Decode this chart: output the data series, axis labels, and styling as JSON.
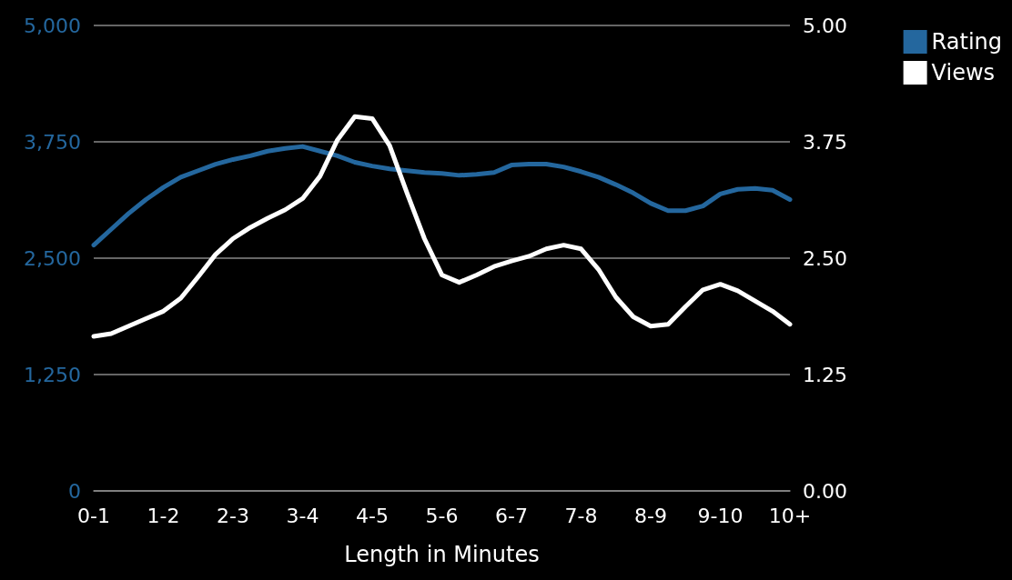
{
  "chart_data": {
    "type": "line",
    "xlabel": "Length in Minutes",
    "categories": [
      "0-1",
      null,
      null,
      null,
      "1-2",
      null,
      null,
      null,
      "2-3",
      null,
      null,
      null,
      "3-4",
      null,
      null,
      null,
      "4-5",
      null,
      null,
      null,
      "5-6",
      null,
      null,
      null,
      "6-7",
      null,
      null,
      null,
      "7-8",
      null,
      null,
      null,
      "8-9",
      null,
      null,
      null,
      "9-10",
      null,
      null,
      null,
      "10+"
    ],
    "ylim": [
      0,
      5000
    ],
    "yticks": [
      0,
      {
        "value": 1250,
        "label": "1,250"
      },
      {
        "value": 2500,
        "label": "2,500"
      },
      {
        "value": 3750,
        "label": "3,750"
      },
      {
        "value": 5000,
        "label": "5,000"
      }
    ],
    "y2lim": [
      0,
      5
    ],
    "y2ticks": [
      {
        "value": 0,
        "label": "0.00"
      },
      {
        "value": 1.25,
        "label": "1.25"
      },
      {
        "value": 2.5,
        "label": "2.50"
      },
      {
        "value": 3.75,
        "label": "3.75"
      },
      {
        "value": 5,
        "label": "5.00"
      }
    ],
    "grid": "y",
    "legend": "top right",
    "marker": "none",
    "line_style": "solid",
    "series": [
      {
        "name": "Rating",
        "color": "#24679e",
        "values": [
          2640,
          2810,
          2980,
          3130,
          3260,
          3370,
          3440,
          3510,
          3560,
          3600,
          3650,
          3680,
          3700,
          3650,
          3600,
          3530,
          3490,
          3460,
          3440,
          3420,
          3410,
          3390,
          3400,
          3420,
          3500,
          3510,
          3510,
          3480,
          3430,
          3370,
          3290,
          3200,
          3090,
          3010,
          3010,
          3060,
          3190,
          3240,
          3250,
          3230,
          3130
        ]
      },
      {
        "name": "Views",
        "color": "#ffffff",
        "axis": "y2",
        "values": [
          1.66,
          1.69,
          1.77,
          1.85,
          1.93,
          2.07,
          2.3,
          2.54,
          2.71,
          2.83,
          2.93,
          3.02,
          3.14,
          3.38,
          3.77,
          4.02,
          4.0,
          3.71,
          3.2,
          2.71,
          2.32,
          2.24,
          2.32,
          2.41,
          2.47,
          2.52,
          2.6,
          2.64,
          2.6,
          2.38,
          2.08,
          1.87,
          1.77,
          1.79,
          1.98,
          2.16,
          2.22,
          2.15,
          2.04,
          1.93,
          1.79
        ]
      }
    ]
  }
}
